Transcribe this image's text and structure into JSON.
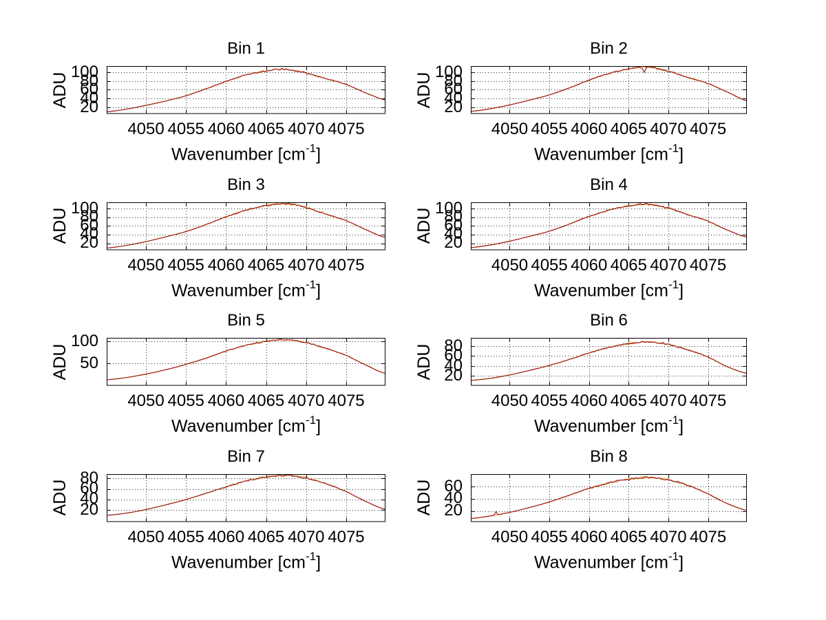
{
  "figure": {
    "background": "#ffffff",
    "ylabel": "ADU",
    "xlabel": {
      "pre": "Wavenumber [cm",
      "sup": "-1",
      "post": "]"
    },
    "x_ticks": [
      4050,
      4055,
      4060,
      4065,
      4070,
      4075
    ],
    "x_range": [
      4045.1,
      4079.9
    ],
    "colors": {
      "line_main": "#9e1b1b",
      "line_under": "#d9992b",
      "grid": "#2a2a2a",
      "axis": "#000000",
      "text": "#000000"
    },
    "grid_style": "dotted",
    "legend": "none"
  },
  "chart_data": [
    {
      "type": "line",
      "title": "Bin 1",
      "xlabel": "Wavenumber [cm-1]",
      "ylabel": "ADU",
      "ylim": [
        4.6,
        114.3
      ],
      "yticks": [
        20,
        40,
        60,
        80,
        100
      ],
      "x": [
        4045,
        4047.5,
        4050,
        4052.5,
        4055,
        4057.5,
        4060,
        4062.5,
        4065,
        4067.5,
        4070,
        4072.5,
        4075,
        4077.5,
        4080
      ],
      "y": [
        9,
        15,
        24,
        34,
        46,
        62,
        79,
        94,
        103,
        107,
        98,
        85,
        72,
        52,
        36
      ],
      "noise": 1.6,
      "spikes": []
    },
    {
      "type": "line",
      "title": "Bin 2",
      "xlabel": "Wavenumber [cm-1]",
      "ylabel": "ADU",
      "ylim": [
        4.6,
        114.3
      ],
      "yticks": [
        20,
        40,
        60,
        80,
        100
      ],
      "x": [
        4045,
        4047.5,
        4050,
        4052.5,
        4055,
        4057.5,
        4060,
        4062.5,
        4065,
        4067.5,
        4070,
        4072.5,
        4075,
        4077.5,
        4080
      ],
      "y": [
        10,
        16,
        25,
        36,
        48,
        64,
        82,
        97,
        108,
        112,
        103,
        88,
        74,
        54,
        34
      ],
      "noise": 1.7,
      "spikes": [
        {
          "x": 4066.9,
          "dy": -19
        }
      ]
    },
    {
      "type": "line",
      "title": "Bin 3",
      "xlabel": "Wavenumber [cm-1]",
      "ylabel": "ADU",
      "ylim": [
        4.6,
        114.3
      ],
      "yticks": [
        20,
        40,
        60,
        80,
        100
      ],
      "x": [
        4045,
        4047.5,
        4050,
        4052.5,
        4055,
        4057.5,
        4060,
        4062.5,
        4065,
        4067.5,
        4070,
        4072.5,
        4075,
        4077.5,
        4080
      ],
      "y": [
        9,
        15,
        24,
        35,
        47,
        63,
        81,
        96,
        107,
        111,
        102,
        87,
        72,
        51,
        33
      ],
      "noise": 1.7,
      "spikes": []
    },
    {
      "type": "line",
      "title": "Bin 4",
      "xlabel": "Wavenumber [cm-1]",
      "ylabel": "ADU",
      "ylim": [
        4.6,
        114.3
      ],
      "yticks": [
        20,
        40,
        60,
        80,
        100
      ],
      "x": [
        4045,
        4047.5,
        4050,
        4052.5,
        4055,
        4057.5,
        4060,
        4062.5,
        4065,
        4067.5,
        4070,
        4072.5,
        4075,
        4077.5,
        4080
      ],
      "y": [
        10,
        16,
        25,
        36,
        48,
        64,
        82,
        96,
        106,
        110,
        101,
        86,
        71,
        50,
        34
      ],
      "noise": 1.6,
      "spikes": []
    },
    {
      "type": "line",
      "title": "Bin 5",
      "xlabel": "Wavenumber [cm-1]",
      "ylabel": "ADU",
      "ylim": [
        0,
        108
      ],
      "yticks": [
        50,
        100
      ],
      "x": [
        4045,
        4047.5,
        4050,
        4052.5,
        4055,
        4057.5,
        4060,
        4062.5,
        4065,
        4067.5,
        4070,
        4072.5,
        4075,
        4077.5,
        4080
      ],
      "y": [
        13,
        18,
        26,
        36,
        48,
        62,
        78,
        91,
        100,
        104,
        97,
        84,
        68,
        46,
        27
      ],
      "noise": 1.4,
      "spikes": []
    },
    {
      "type": "line",
      "title": "Bin 6",
      "xlabel": "Wavenumber [cm-1]",
      "ylabel": "ADU",
      "ylim": [
        0.6,
        96.3
      ],
      "yticks": [
        20,
        40,
        60,
        80
      ],
      "x": [
        4045,
        4047.5,
        4050,
        4052.5,
        4055,
        4057.5,
        4060,
        4062.5,
        4065,
        4067.5,
        4070,
        4072.5,
        4075,
        4077.5,
        4080
      ],
      "y": [
        11,
        15,
        22,
        31,
        41,
        53,
        66,
        77,
        85,
        88,
        83,
        72,
        58,
        38,
        25
      ],
      "noise": 1.5,
      "spikes": []
    },
    {
      "type": "line",
      "title": "Bin 7",
      "xlabel": "Wavenumber [cm-1]",
      "ylabel": "ADU",
      "ylim": [
        -2.4,
        88.4
      ],
      "yticks": [
        20,
        40,
        60,
        80
      ],
      "x": [
        4045,
        4047.5,
        4050,
        4052.5,
        4055,
        4057.5,
        4060,
        4062.5,
        4065,
        4067.5,
        4070,
        4072.5,
        4075,
        4077.5,
        4080
      ],
      "y": [
        10,
        14,
        21,
        30,
        40,
        52,
        64,
        75,
        83,
        86,
        81,
        70,
        55,
        36,
        21
      ],
      "noise": 1.4,
      "spikes": []
    },
    {
      "type": "line",
      "title": "Bin 8",
      "xlabel": "Wavenumber [cm-1]",
      "ylabel": "ADU",
      "ylim": [
        2.6,
        80.3
      ],
      "yticks": [
        20,
        40,
        60
      ],
      "x": [
        4045,
        4047.5,
        4050,
        4052.5,
        4055,
        4057.5,
        4060,
        4062.5,
        4065,
        4067.5,
        4070,
        4072.5,
        4075,
        4077.5,
        4080
      ],
      "y": [
        8,
        12,
        18,
        26,
        35,
        46,
        57,
        66,
        72,
        75,
        71,
        62,
        48,
        32,
        21
      ],
      "noise": 1.4,
      "spikes": [
        {
          "x": 4048.3,
          "dy": 6
        }
      ]
    }
  ]
}
